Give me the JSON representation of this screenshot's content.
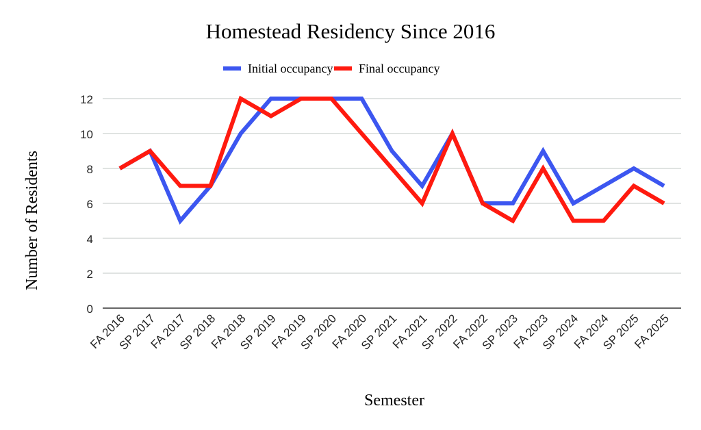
{
  "chart_data": {
    "type": "line",
    "title": "Homestead Residency Since 2016",
    "xlabel": "Semester",
    "ylabel": "Number of Residents",
    "ylim": [
      0,
      12
    ],
    "yticks": [
      0,
      2,
      4,
      6,
      8,
      10,
      12
    ],
    "grid": true,
    "legend_position": "top",
    "categories": [
      "FA 2016",
      "SP 2017",
      "FA 2017",
      "SP 2018",
      "FA 2018",
      "SP 2019",
      "FA 2019",
      "SP 2020",
      "FA 2020",
      "SP 2021",
      "FA 2021",
      "SP 2022",
      "FA 2022",
      "SP 2023",
      "FA 2023",
      "SP 2024",
      "FA 2024",
      "SP 2025",
      "FA 2025"
    ],
    "series": [
      {
        "name": "Initial occupancy",
        "color": "#3c56f0",
        "values": [
          8,
          9,
          5,
          7,
          10,
          12,
          12,
          12,
          12,
          9,
          7,
          10,
          6,
          6,
          9,
          6,
          7,
          8,
          7
        ]
      },
      {
        "name": "Final occupancy",
        "color": "#ff1a0f",
        "values": [
          8,
          9,
          7,
          7,
          12,
          11,
          12,
          12,
          10,
          8,
          6,
          10,
          6,
          5,
          8,
          5,
          5,
          7,
          6
        ]
      }
    ]
  }
}
